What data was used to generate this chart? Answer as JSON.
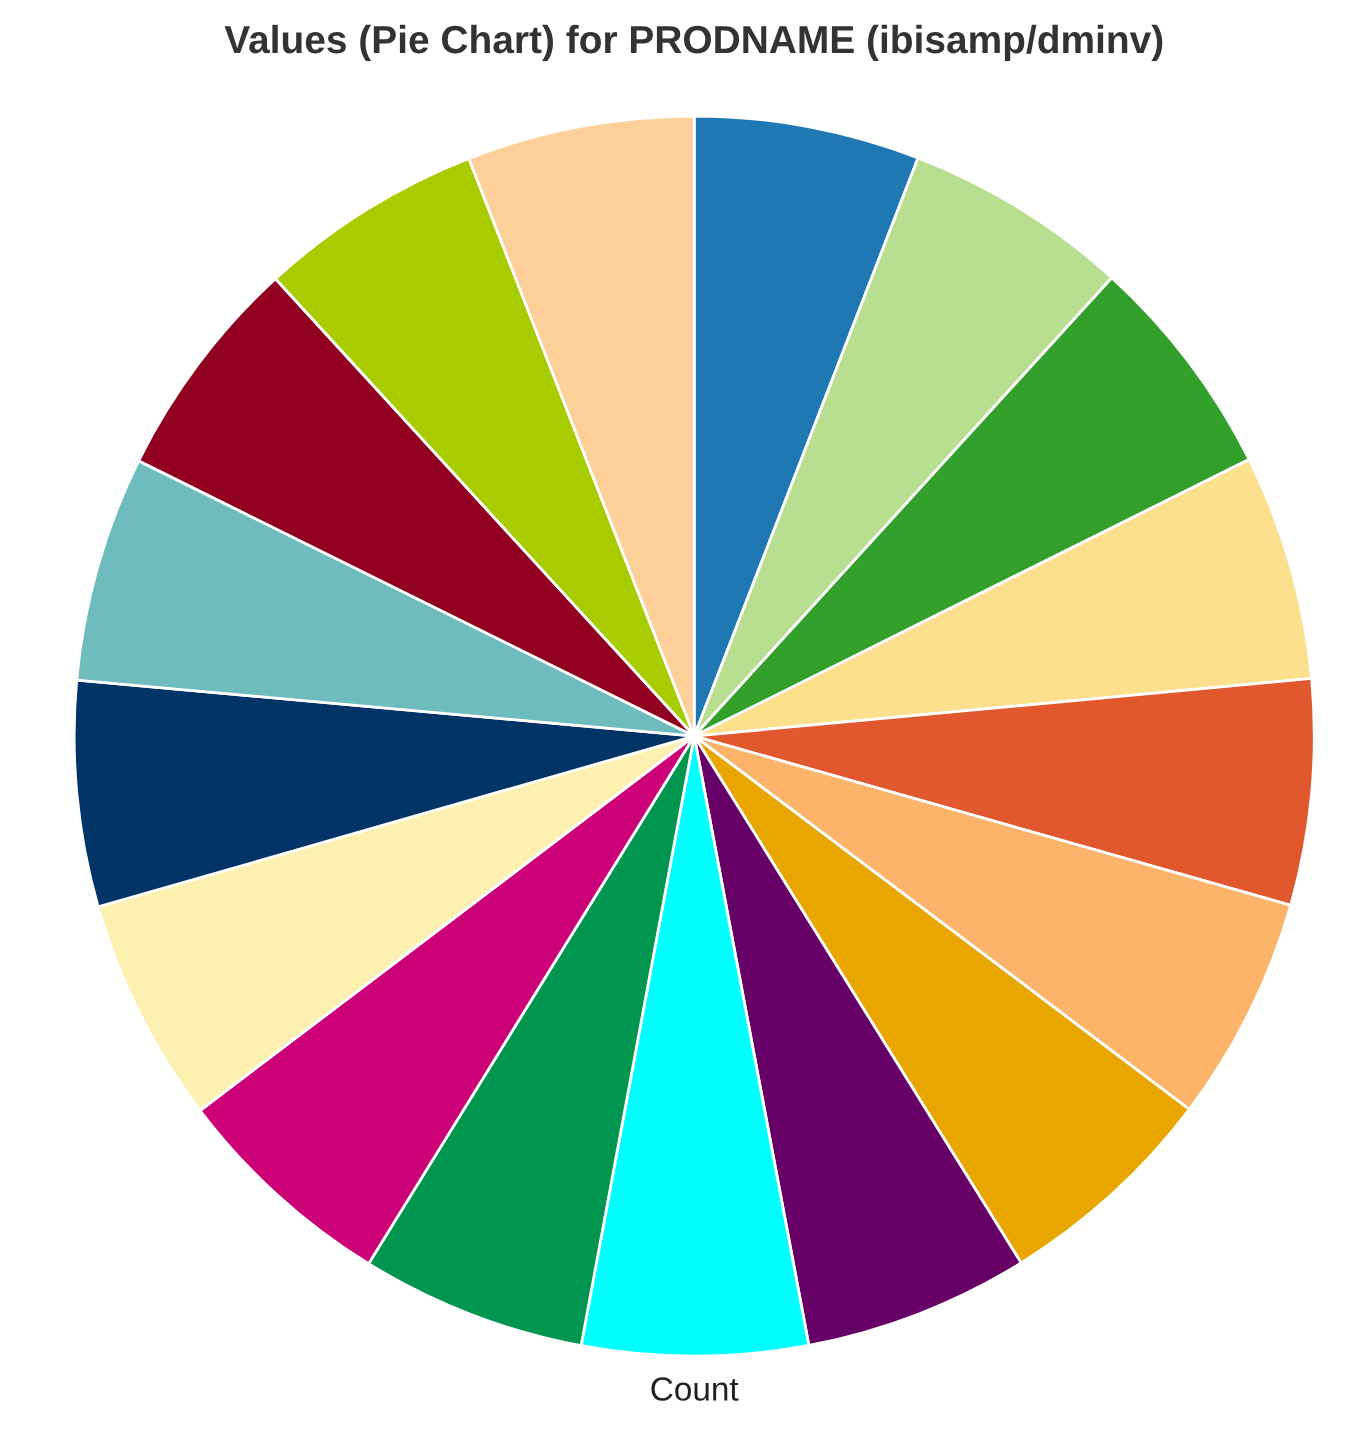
{
  "chart_data": {
    "type": "pie",
    "title": "Values (Pie Chart) for PRODNAME (ibisamp/dminv)",
    "xlabel": "Count",
    "categories": [
      null,
      null,
      null,
      null,
      null,
      null,
      null,
      null,
      null,
      null,
      null,
      null,
      null,
      null,
      null,
      null,
      null
    ],
    "values": [
      5.88,
      5.88,
      5.88,
      5.88,
      5.88,
      5.88,
      5.88,
      5.88,
      5.88,
      5.88,
      5.88,
      5.88,
      5.88,
      5.88,
      5.88,
      5.88,
      5.92
    ],
    "colors": [
      "#1f78b4",
      "#b8de90",
      "#33a02c",
      "#fce08e",
      "#e1572e",
      "#fbb469",
      "#eaa600",
      "#660066",
      "#00ffff",
      "#00964f",
      "#cc0077",
      "#fdf0b0",
      "#003366",
      "#6fbcbf",
      "#910020",
      "#a8cc00",
      "#fdd09a"
    ]
  }
}
